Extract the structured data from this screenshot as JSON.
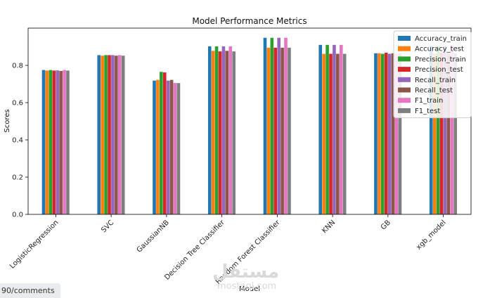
{
  "chart_data": {
    "type": "bar",
    "title": "Model Performance Metrics",
    "xlabel": "Model",
    "ylabel": "Scores",
    "ylim": [
      0,
      1.0
    ],
    "yticks": [
      0.0,
      0.2,
      0.4,
      0.6,
      0.8
    ],
    "ytick_labels": [
      "0.0",
      "0.2",
      "0.4",
      "0.6",
      "0.8"
    ],
    "grid": false,
    "legend_position": "top-right",
    "categories": [
      "LogisticRegression",
      "SVC",
      "GaussianNB",
      "Decision Tree Classifier",
      "Random Forest Classifier",
      "KNN",
      "GB",
      "xgb_model"
    ],
    "series": [
      {
        "name": "Accuracy_train",
        "color": "#1f77b4",
        "values": [
          0.775,
          0.855,
          0.718,
          0.902,
          0.948,
          0.91,
          0.865,
          0.905
        ]
      },
      {
        "name": "Accuracy_test",
        "color": "#ff7f0e",
        "values": [
          0.772,
          0.852,
          0.722,
          0.878,
          0.895,
          0.862,
          0.865,
          0.865
        ]
      },
      {
        "name": "Precision_train",
        "color": "#2ca02c",
        "values": [
          0.775,
          0.855,
          0.765,
          0.902,
          0.948,
          0.91,
          0.862,
          0.905
        ]
      },
      {
        "name": "Precision_test",
        "color": "#d62728",
        "values": [
          0.772,
          0.855,
          0.762,
          0.875,
          0.895,
          0.862,
          0.868,
          0.87
        ]
      },
      {
        "name": "Recall_train",
        "color": "#9467bd",
        "values": [
          0.773,
          0.855,
          0.718,
          0.902,
          0.948,
          0.91,
          0.862,
          0.905
        ]
      },
      {
        "name": "Recall_test",
        "color": "#8c564b",
        "values": [
          0.77,
          0.852,
          0.722,
          0.878,
          0.895,
          0.862,
          0.865,
          0.865
        ]
      },
      {
        "name": "F1_train",
        "color": "#e377c2",
        "values": [
          0.775,
          0.855,
          0.705,
          0.902,
          0.948,
          0.91,
          0.862,
          0.905
        ]
      },
      {
        "name": "F1_test",
        "color": "#7f7f7f",
        "values": [
          0.772,
          0.852,
          0.705,
          0.875,
          0.895,
          0.862,
          0.865,
          0.865
        ]
      }
    ]
  },
  "watermark": {
    "main": "مستقل",
    "sub": "mostaql.com"
  },
  "url_chip": "90/comments"
}
